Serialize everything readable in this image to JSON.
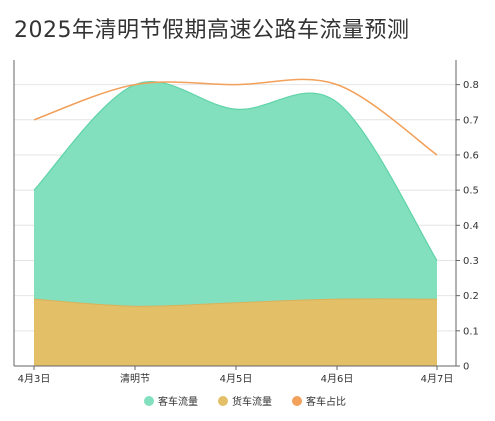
{
  "chart_data": {
    "type": "area",
    "title": "2025年清明节假期高速公路车流量预测",
    "categories": [
      "4月3日",
      "清明节",
      "4月5日",
      "4月6日",
      "4月7日"
    ],
    "series": [
      {
        "name": "客车流量",
        "kind": "area",
        "stacked": true,
        "color": "#82e0bf",
        "stroke": "#5fd3a8",
        "values": [
          0.31,
          0.63,
          0.55,
          0.56,
          0.11
        ]
      },
      {
        "name": "货车流量",
        "kind": "area",
        "stacked": true,
        "color": "#e3bf68",
        "stroke": "#d9b15a",
        "values": [
          0.19,
          0.17,
          0.18,
          0.19,
          0.19
        ]
      },
      {
        "name": "客车占比",
        "kind": "line",
        "color": "#f2a05a",
        "values": [
          0.7,
          0.8,
          0.8,
          0.8,
          0.6
        ]
      }
    ],
    "y_axis": {
      "side": "right",
      "min": 0,
      "max": 0.8,
      "ticks": [
        0,
        0.1,
        0.2,
        0.3,
        0.4,
        0.5,
        0.6,
        0.7,
        0.8
      ]
    },
    "grid": true,
    "legend": "bottom-center"
  }
}
